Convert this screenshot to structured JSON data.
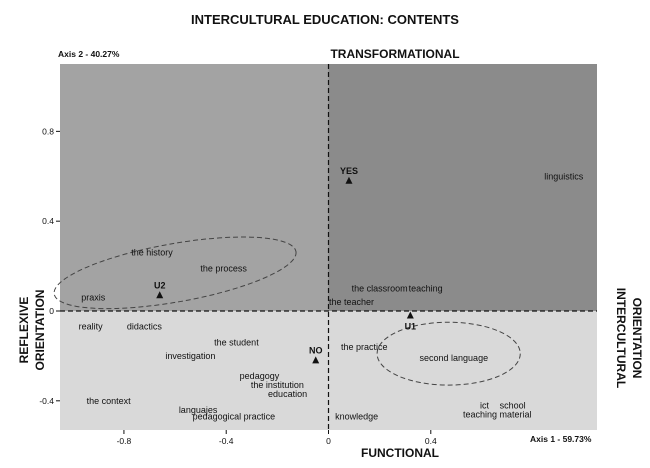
{
  "chart_data": {
    "type": "scatter",
    "title": "INTERCULTURAL EDUCATION: CONTENTS",
    "xlabel": "Axis 1 - 59.73%",
    "ylabel": "Axis 2 - 40.27%",
    "pole_labels": {
      "top": "TRANSFORMATIONAL",
      "bottom": "FUNCTIONAL",
      "left_line1": "REFLEXIVE",
      "left_line2": "ORIENTATION",
      "right_line1": "INTERCULTURAL",
      "right_line2": "ORIENTATION"
    },
    "xlim": [
      -1.05,
      1.05
    ],
    "ylim": [
      -0.53,
      1.1
    ],
    "x_ticks": [
      {
        "value": -0.8,
        "label": "-0.8"
      },
      {
        "value": -0.4,
        "label": "-0.4"
      },
      {
        "value": 0,
        "label": "0"
      },
      {
        "value": 0.4,
        "label": "0.4"
      }
    ],
    "y_ticks": [
      {
        "value": 0.8,
        "label": "0.8"
      },
      {
        "value": 0.4,
        "label": "0.4"
      },
      {
        "value": 0,
        "label": "0"
      },
      {
        "value": -0.4,
        "label": "-0.4"
      }
    ],
    "quadrant_colors": {
      "upper_left": "#a3a3a3",
      "upper_right": "#8b8b8b",
      "lower_left": "#d9d9d9",
      "lower_right": "#d9d9d9"
    },
    "markers": [
      {
        "label": "YES",
        "x": 0.08,
        "y": 0.58
      },
      {
        "label": "U2",
        "x": -0.66,
        "y": 0.07
      },
      {
        "label": "U1",
        "x": 0.32,
        "y": -0.02
      },
      {
        "label": "NO",
        "x": -0.05,
        "y": -0.22
      }
    ],
    "points": [
      {
        "label": "linguistics",
        "x": 0.92,
        "y": 0.6
      },
      {
        "label": "the history",
        "x": -0.69,
        "y": 0.26
      },
      {
        "label": "the process",
        "x": -0.41,
        "y": 0.19
      },
      {
        "label": "praxis",
        "x": -0.92,
        "y": 0.06
      },
      {
        "label": "the classroom",
        "x": 0.2,
        "y": 0.1
      },
      {
        "label": "teaching",
        "x": 0.38,
        "y": 0.1
      },
      {
        "label": "the teacher",
        "x": 0.09,
        "y": 0.04
      },
      {
        "label": "reality",
        "x": -0.93,
        "y": -0.07
      },
      {
        "label": "didactics",
        "x": -0.72,
        "y": -0.07
      },
      {
        "label": "the student",
        "x": -0.36,
        "y": -0.14
      },
      {
        "label": "investigation",
        "x": -0.54,
        "y": -0.2
      },
      {
        "label": "the practice",
        "x": 0.14,
        "y": -0.16
      },
      {
        "label": "second language",
        "x": 0.49,
        "y": -0.21
      },
      {
        "label": "pedagogy",
        "x": -0.27,
        "y": -0.29
      },
      {
        "label": "the institution",
        "x": -0.2,
        "y": -0.33
      },
      {
        "label": "education",
        "x": -0.16,
        "y": -0.37
      },
      {
        "label": "the context",
        "x": -0.86,
        "y": -0.4
      },
      {
        "label": "languajes",
        "x": -0.51,
        "y": -0.44
      },
      {
        "label": "pedagogical practice",
        "x": -0.37,
        "y": -0.47
      },
      {
        "label": "knowledge",
        "x": 0.11,
        "y": -0.47
      },
      {
        "label": "ict",
        "x": 0.61,
        "y": -0.42
      },
      {
        "label": "school",
        "x": 0.72,
        "y": -0.42
      },
      {
        "label": "teaching material",
        "x": 0.66,
        "y": -0.46
      }
    ],
    "ellipses": [
      {
        "cx": -0.6,
        "cy": 0.17,
        "rx": 0.48,
        "ry": 0.13,
        "rotate_deg": -10
      },
      {
        "cx": 0.47,
        "cy": -0.19,
        "rx": 0.28,
        "ry": 0.14,
        "rotate_deg": 0
      }
    ],
    "grid": false
  }
}
